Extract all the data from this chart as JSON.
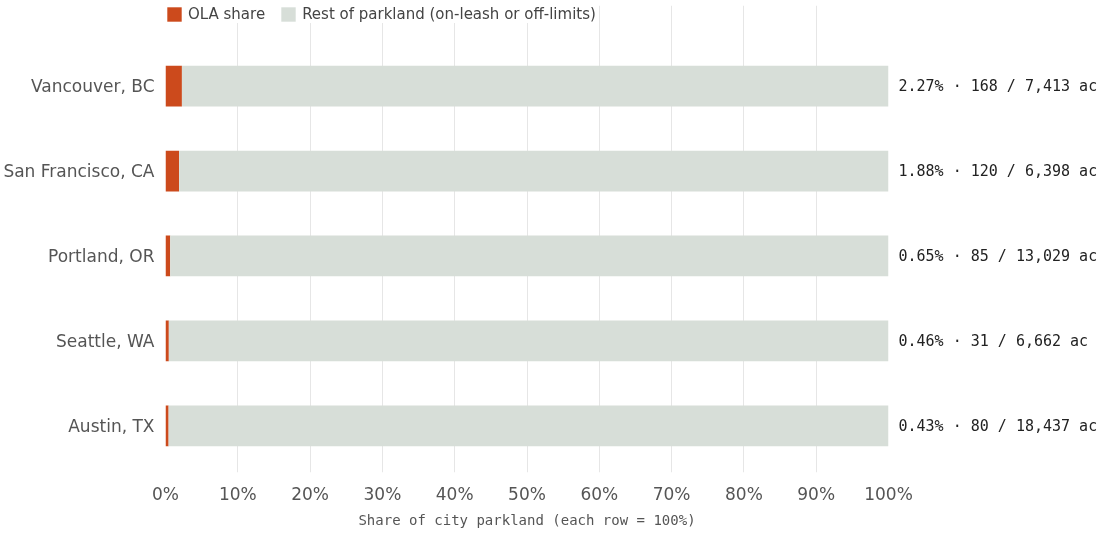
{
  "chart_data": {
    "type": "bar",
    "orientation": "horizontal",
    "stacked": true,
    "categories": [
      "Vancouver, BC",
      "San Francisco, CA",
      "Portland, OR",
      "Seattle, WA",
      "Austin, TX"
    ],
    "series": [
      {
        "name": "OLA share",
        "color": "#cc4a1c",
        "values": [
          2.27,
          1.88,
          0.65,
          0.46,
          0.43
        ]
      },
      {
        "name": "Rest of parkland (on-leash or off-limits)",
        "color": "#d7ded8",
        "values": [
          97.73,
          98.12,
          99.35,
          99.54,
          99.57
        ]
      }
    ],
    "annotations": [
      "2.27% · 168 / 7,413 ac",
      "1.88% · 120 / 6,398 ac",
      "0.65% · 85 / 13,029 ac",
      "0.46% · 31 / 6,662 ac",
      "0.43% · 80 / 18,437 ac"
    ],
    "xlabel": "Share of city parkland (each row = 100%)",
    "xlim": [
      0,
      100
    ],
    "xticks": [
      {
        "value": 0,
        "label": "0%"
      },
      {
        "value": 10,
        "label": "10%"
      },
      {
        "value": 20,
        "label": "20%"
      },
      {
        "value": 30,
        "label": "30%"
      },
      {
        "value": 40,
        "label": "40%"
      },
      {
        "value": 50,
        "label": "50%"
      },
      {
        "value": 60,
        "label": "60%"
      },
      {
        "value": 70,
        "label": "70%"
      },
      {
        "value": 80,
        "label": "80%"
      },
      {
        "value": 90,
        "label": "90%"
      },
      {
        "value": 100,
        "label": "100%"
      }
    ],
    "grid": "x",
    "legend": "top left"
  }
}
